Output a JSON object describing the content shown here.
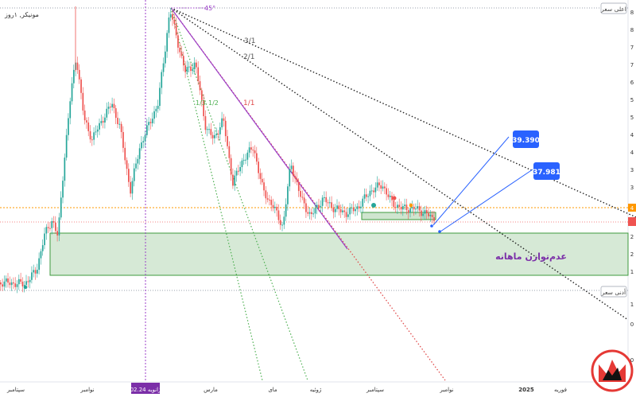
{
  "header": {
    "symbol_label": "مونیکر, ۱روز"
  },
  "chart_data": {
    "type": "candlestick",
    "x_ticks": [
      "سپتامبر",
      "نوامبر",
      "ژانویه 02.24",
      "مارس",
      "مای",
      "ژوئیه",
      "سپتامبر",
      "نوامبر",
      "2025",
      "فوریه"
    ],
    "price_axis_labels": [
      "8",
      "8",
      "7",
      "7",
      "6",
      "5",
      "5",
      "4",
      "4",
      "3",
      "3",
      "2",
      "2",
      "1",
      "1",
      "0",
      "0"
    ],
    "annotations": {
      "highest_price": "اعلی سعر",
      "lowest_price": "أدنی سعر",
      "monthly_imbalance": "عدم‌توازن ماهانه",
      "fan_top": "45°",
      "fan_labels": [
        "3/1",
        "2/1",
        "1/1",
        "1/3",
        "1/2"
      ],
      "target_1": "39.390",
      "target_2": "37.981",
      "price_marker": "4"
    },
    "colors": {
      "up": "#26a69a",
      "down": "#ef5350",
      "zone_fill": "#cfe5cf",
      "zone_border": "#3e9a3e",
      "gann_dotted": "#222222",
      "purple": "#9b3ec8",
      "target_box": "#2962ff",
      "orange_line": "#ff9800"
    },
    "grid": false
  }
}
